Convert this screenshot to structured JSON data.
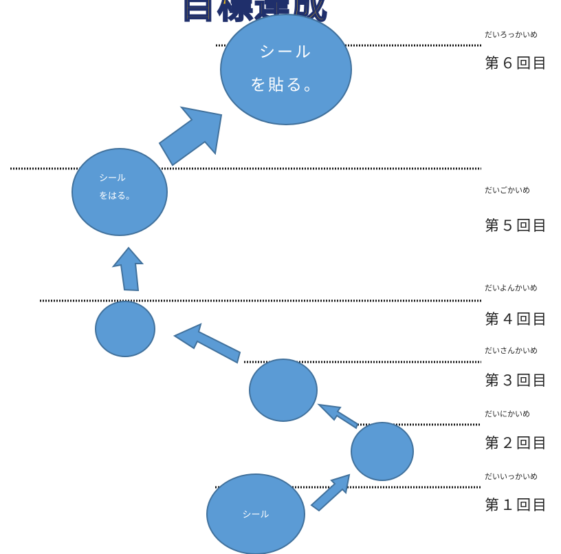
{
  "title": "目標達成",
  "levels": [
    {
      "ruby": "だいろっかいめ",
      "label": "第６回目"
    },
    {
      "ruby": "だいごかいめ",
      "label": "第５回目"
    },
    {
      "ruby": "だいよんかいめ",
      "label": "第４回目"
    },
    {
      "ruby": "だいさんかいめ",
      "label": "第３回目"
    },
    {
      "ruby": "だいにかいめ",
      "label": "第２回目"
    },
    {
      "ruby": "だいいっかいめ",
      "label": "第１回目"
    }
  ],
  "circles": {
    "bottom": {
      "text": "シール"
    },
    "level5": {
      "line1": "シール",
      "line2": "をはる。"
    },
    "level6": {
      "line1": "シール",
      "line2": "を貼る。"
    }
  },
  "colors": {
    "fill": "#5b9bd5",
    "stroke": "#41719c",
    "title_fill": "#f5c11a",
    "title_stroke": "#1f2f6b"
  }
}
